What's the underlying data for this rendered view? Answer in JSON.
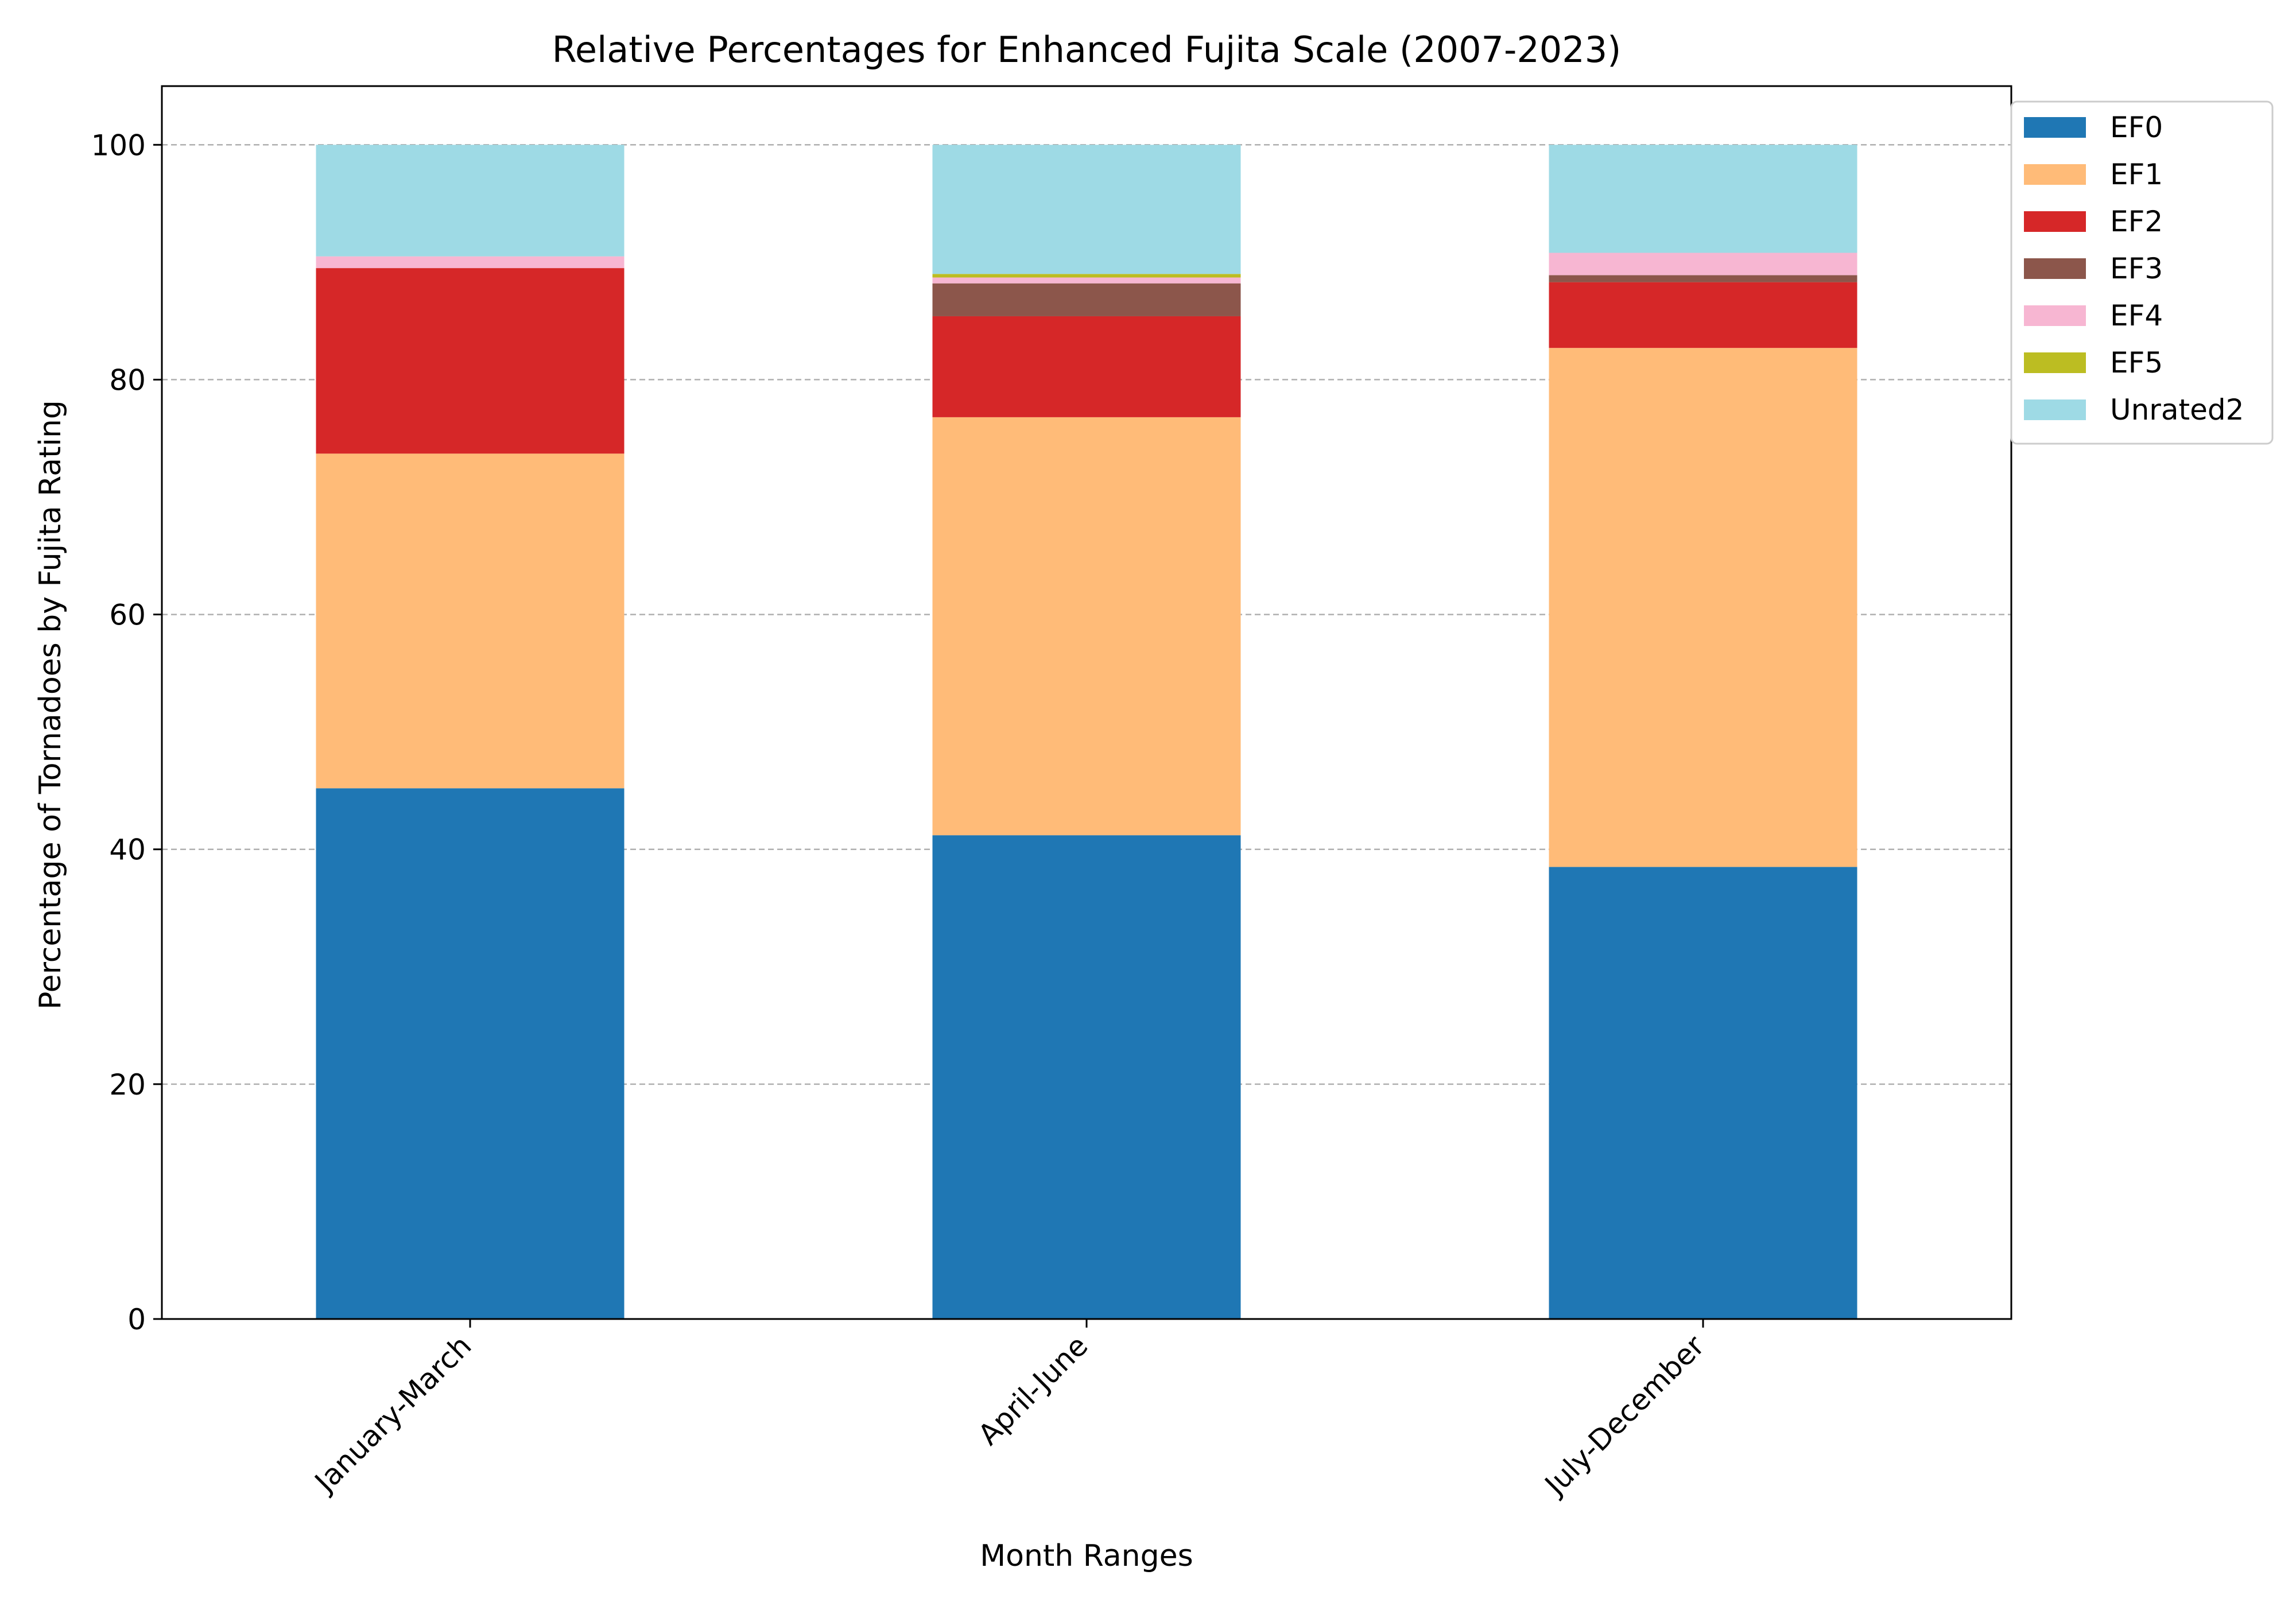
{
  "chart_data": {
    "type": "bar",
    "stacked": true,
    "title": "Relative Percentages for Enhanced Fujita Scale (2007-2023)",
    "xlabel": "Month Ranges",
    "ylabel": "Percentage of Tornadoes by Fujita Rating",
    "categories": [
      "January-March",
      "April-June",
      "July-December"
    ],
    "ylim": [
      0,
      105
    ],
    "yticks": [
      0,
      20,
      40,
      60,
      80,
      100
    ],
    "grid": "y-dashed",
    "legend_position": "upper-right-outside",
    "series": [
      {
        "name": "EF0",
        "color": "#1f77b4",
        "values": [
          45.2,
          41.2,
          38.5
        ]
      },
      {
        "name": "EF1",
        "color": "#ffbb78",
        "values": [
          28.5,
          35.6,
          44.2
        ]
      },
      {
        "name": "EF2",
        "color": "#d62728",
        "values": [
          15.8,
          8.6,
          5.6
        ]
      },
      {
        "name": "EF3",
        "color": "#8c564b",
        "values": [
          0.0,
          2.8,
          0.6
        ]
      },
      {
        "name": "EF4",
        "color": "#f7b6d2",
        "values": [
          1.0,
          0.5,
          1.9
        ]
      },
      {
        "name": "EF5",
        "color": "#bcbd22",
        "values": [
          0.0,
          0.3,
          0.0
        ]
      },
      {
        "name": "Unrated2",
        "color": "#9edae5",
        "values": [
          9.5,
          11.0,
          9.2
        ]
      }
    ]
  }
}
